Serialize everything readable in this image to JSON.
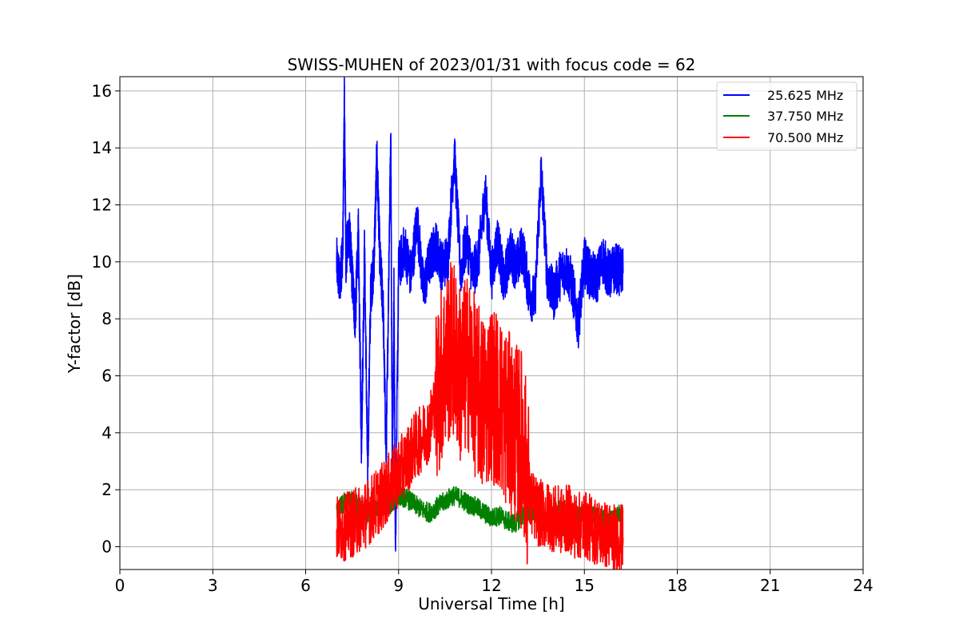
{
  "chart_data": {
    "type": "line",
    "title": "SWISS-MUHEN of 2023/01/31 with focus code = 62",
    "xlabel": "Universal Time [h]",
    "ylabel": "Y-factor [dB]",
    "xlim": [
      0,
      24
    ],
    "ylim": [
      -0.8,
      16.5
    ],
    "xticks": [
      0,
      3,
      6,
      9,
      12,
      15,
      18,
      21,
      24
    ],
    "yticks": [
      0,
      2,
      4,
      6,
      8,
      10,
      12,
      14,
      16
    ],
    "grid": true,
    "legend_position": "top-right",
    "series": [
      {
        "name": "25.625 MHz",
        "color": "#0000ff",
        "x": [
          7.0,
          7.1,
          7.2,
          7.25,
          7.3,
          7.4,
          7.5,
          7.6,
          7.7,
          7.8,
          7.9,
          8.0,
          8.1,
          8.2,
          8.3,
          8.4,
          8.5,
          8.6,
          8.7,
          8.75,
          8.8,
          8.85,
          8.9,
          9.0,
          9.2,
          9.4,
          9.6,
          9.8,
          10.0,
          10.2,
          10.4,
          10.6,
          10.8,
          11.0,
          11.2,
          11.4,
          11.6,
          11.8,
          12.0,
          12.2,
          12.4,
          12.6,
          12.8,
          13.0,
          13.2,
          13.4,
          13.6,
          13.8,
          14.0,
          14.2,
          14.4,
          14.6,
          14.8,
          15.0,
          15.2,
          15.4,
          15.6,
          15.8,
          16.0,
          16.25
        ],
        "y": [
          10.0,
          9.2,
          10.5,
          15.7,
          10.0,
          11.2,
          9.5,
          8.0,
          11.0,
          3.5,
          10.5,
          2.5,
          9.0,
          9.8,
          13.7,
          10.0,
          8.5,
          3.0,
          11.0,
          14.2,
          2.0,
          9.0,
          0.0,
          9.8,
          10.5,
          9.5,
          11.5,
          9.0,
          10.0,
          10.6,
          9.8,
          10.2,
          13.9,
          9.6,
          10.8,
          9.5,
          10.3,
          12.5,
          9.5,
          10.8,
          9.2,
          10.4,
          9.8,
          10.5,
          9.0,
          8.6,
          13.2,
          9.5,
          8.8,
          9.5,
          9.8,
          9.2,
          7.8,
          10.0,
          9.5,
          9.4,
          10.1,
          9.5,
          9.8,
          9.6
        ]
      },
      {
        "name": "37.750 MHz",
        "color": "#008000",
        "x": [
          7.0,
          7.25,
          7.5,
          7.75,
          8.0,
          8.25,
          8.5,
          8.75,
          9.0,
          9.25,
          9.5,
          9.75,
          10.0,
          10.25,
          10.5,
          10.75,
          11.0,
          11.25,
          11.5,
          11.75,
          12.0,
          12.25,
          12.5,
          12.75,
          13.0,
          13.25,
          13.5,
          13.75,
          14.0,
          14.25,
          14.5,
          14.75,
          15.0,
          15.25,
          15.5,
          15.75,
          16.0,
          16.25
        ],
        "y": [
          1.3,
          1.5,
          1.6,
          1.4,
          1.2,
          1.3,
          1.4,
          1.5,
          1.8,
          1.7,
          1.5,
          1.3,
          1.2,
          1.4,
          1.6,
          1.8,
          1.7,
          1.5,
          1.4,
          1.2,
          1.0,
          1.1,
          0.9,
          0.8,
          1.1,
          1.3,
          1.0,
          0.8,
          1.2,
          1.3,
          1.1,
          1.0,
          1.2,
          1.1,
          1.0,
          0.9,
          1.1,
          1.2
        ]
      },
      {
        "name": "70.500 MHz",
        "color": "#ff0000",
        "x": [
          7.0,
          7.25,
          7.5,
          7.75,
          8.0,
          8.25,
          8.5,
          8.75,
          9.0,
          9.25,
          9.5,
          9.75,
          10.0,
          10.25,
          10.5,
          10.75,
          11.0,
          11.25,
          11.5,
          11.75,
          12.0,
          12.25,
          12.5,
          12.75,
          13.0,
          13.25,
          13.5,
          13.75,
          14.0,
          14.25,
          14.5,
          14.75,
          15.0,
          15.25,
          15.5,
          15.75,
          16.0,
          16.25
        ],
        "y": [
          0.6,
          0.7,
          0.8,
          1.0,
          1.2,
          1.5,
          1.8,
          2.2,
          2.6,
          3.0,
          3.5,
          3.8,
          4.2,
          5.5,
          6.5,
          7.0,
          6.0,
          6.5,
          5.5,
          5.0,
          5.5,
          5.0,
          4.5,
          4.0,
          3.8,
          1.6,
          1.2,
          1.1,
          1.0,
          0.9,
          1.0,
          0.7,
          0.8,
          0.6,
          0.5,
          0.4,
          0.3,
          0.3
        ]
      }
    ]
  }
}
